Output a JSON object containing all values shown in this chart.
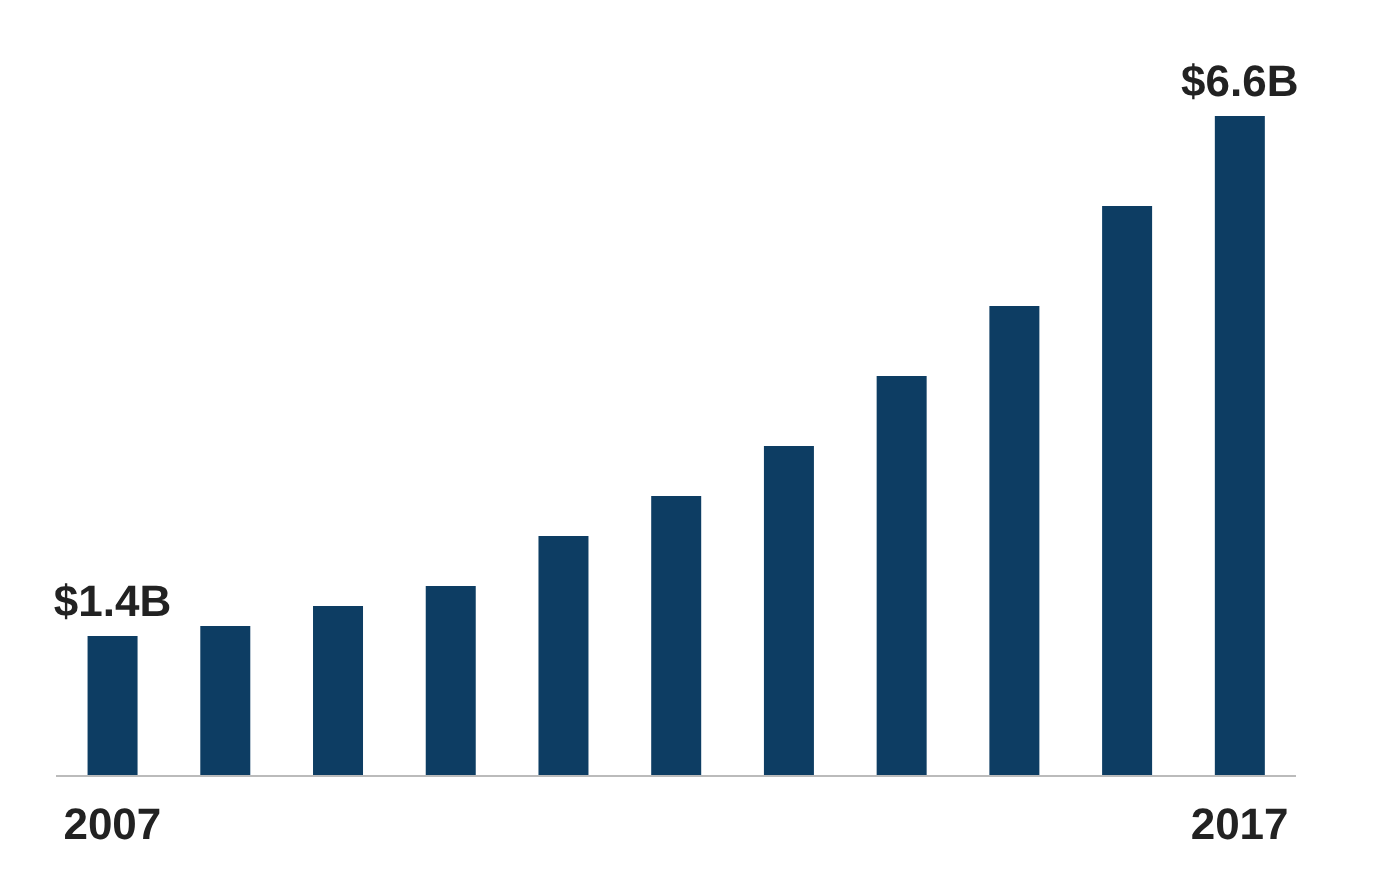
{
  "chart_data": {
    "type": "bar",
    "categories": [
      "2007",
      null,
      null,
      null,
      null,
      null,
      null,
      null,
      null,
      null,
      "2017"
    ],
    "values": [
      1.4,
      1.5,
      1.7,
      1.9,
      2.4,
      2.8,
      3.3,
      4.0,
      4.7,
      5.7,
      6.6
    ],
    "value_labels": [
      "$1.4B",
      null,
      null,
      null,
      null,
      null,
      null,
      null,
      null,
      null,
      "$6.6B"
    ],
    "color": "#0d3d63"
  }
}
